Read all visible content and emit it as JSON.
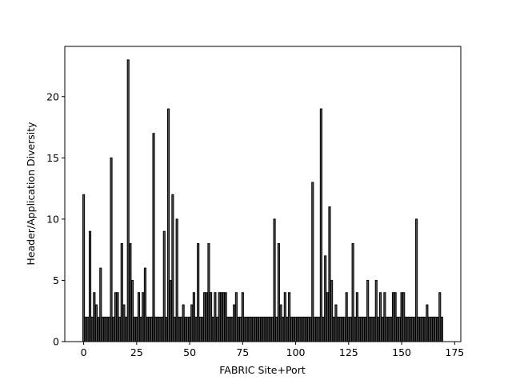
{
  "chart_data": {
    "type": "bar",
    "xlabel": "FABRIC Site+Port",
    "ylabel": "Header/Application Diversity",
    "x": [
      0,
      1,
      2,
      3,
      4,
      5,
      6,
      7,
      8,
      9,
      10,
      11,
      12,
      13,
      14,
      15,
      16,
      17,
      18,
      19,
      20,
      21,
      22,
      23,
      24,
      25,
      26,
      27,
      28,
      29,
      30,
      31,
      32,
      33,
      34,
      35,
      36,
      37,
      38,
      39,
      40,
      41,
      42,
      43,
      44,
      45,
      46,
      47,
      48,
      49,
      50,
      51,
      52,
      53,
      54,
      55,
      56,
      57,
      58,
      59,
      60,
      61,
      62,
      63,
      64,
      65,
      66,
      67,
      68,
      69,
      70,
      71,
      72,
      73,
      74,
      75,
      76,
      77,
      78,
      79,
      80,
      81,
      82,
      83,
      84,
      85,
      86,
      87,
      88,
      89,
      90,
      91,
      92,
      93,
      94,
      95,
      96,
      97,
      98,
      99,
      100,
      101,
      102,
      103,
      104,
      105,
      106,
      107,
      108,
      109,
      110,
      111,
      112,
      113,
      114,
      115,
      116,
      117,
      118,
      119,
      120,
      121,
      122,
      123,
      124,
      125,
      126,
      127,
      128,
      129,
      130,
      131,
      132,
      133,
      134,
      135,
      136,
      137,
      138,
      139,
      140,
      141,
      142,
      143,
      144,
      145,
      146,
      147,
      148,
      149,
      150,
      151,
      152,
      153,
      154,
      155,
      156,
      157,
      158,
      159,
      160,
      161,
      162,
      163,
      164,
      165,
      166,
      167,
      168,
      169
    ],
    "values": [
      12,
      2,
      2,
      9,
      2,
      4,
      3,
      2,
      6,
      2,
      2,
      2,
      2,
      15,
      2,
      4,
      4,
      2,
      8,
      3,
      2,
      23,
      8,
      5,
      2,
      2,
      4,
      2,
      4,
      6,
      2,
      2,
      2,
      17,
      2,
      2,
      2,
      2,
      9,
      2,
      19,
      5,
      12,
      2,
      10,
      2,
      2,
      3,
      2,
      2,
      2,
      3,
      4,
      2,
      8,
      2,
      2,
      4,
      4,
      8,
      4,
      2,
      4,
      2,
      4,
      4,
      4,
      4,
      2,
      2,
      2,
      3,
      4,
      2,
      2,
      4,
      2,
      2,
      2,
      2,
      2,
      2,
      2,
      2,
      2,
      2,
      2,
      2,
      2,
      2,
      10,
      2,
      8,
      3,
      2,
      4,
      2,
      4,
      2,
      2,
      2,
      2,
      2,
      2,
      2,
      2,
      2,
      2,
      13,
      2,
      2,
      2,
      19,
      2,
      7,
      4,
      11,
      5,
      2,
      3,
      2,
      2,
      2,
      2,
      4,
      2,
      2,
      8,
      2,
      4,
      2,
      2,
      2,
      2,
      5,
      2,
      2,
      2,
      5,
      2,
      4,
      2,
      4,
      2,
      2,
      2,
      4,
      4,
      2,
      2,
      4,
      4,
      2,
      2,
      2,
      2,
      2,
      10,
      2,
      2,
      2,
      2,
      3,
      2,
      2,
      2,
      2,
      2,
      4,
      2
    ],
    "color": "#555555",
    "edgecolor": "#000000",
    "bar_width": 0.8,
    "xlim": [
      -8.9,
      177.9
    ],
    "xticks": [
      0,
      25,
      50,
      75,
      100,
      125,
      150,
      175
    ],
    "ylim": [
      0,
      24.1
    ],
    "yticks": [
      0,
      5,
      10,
      15,
      20
    ]
  }
}
